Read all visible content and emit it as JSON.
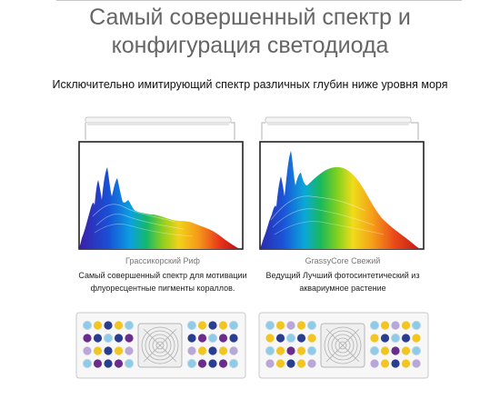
{
  "title_line1": "Самый совершенный спектр и",
  "title_line2": "конфигурация светодиода",
  "subtitle": "Исключительно имитирующий спектр различных глубин ниже уровня моря",
  "products": [
    {
      "name": "Грассикорский Риф",
      "desc_line1": "Самый совершенный спектр для мотивации",
      "desc_line2": "флуоресцентные пигменты кораллов."
    },
    {
      "name": "GrassyCore Свежий",
      "desc_line1": "Ведущий Лучший фотосинтетический из",
      "desc_line2": "аквариумное растение"
    }
  ],
  "colors": {
    "led_royal_blue": "#2a3e8f",
    "led_purple": "#6b2d8c",
    "led_yellow": "#f2c521",
    "led_light_blue": "#8ecbe6",
    "led_white": "#e8e8e8",
    "led_lavender": "#b9a7d8",
    "led_orange": "#e88a2a"
  }
}
